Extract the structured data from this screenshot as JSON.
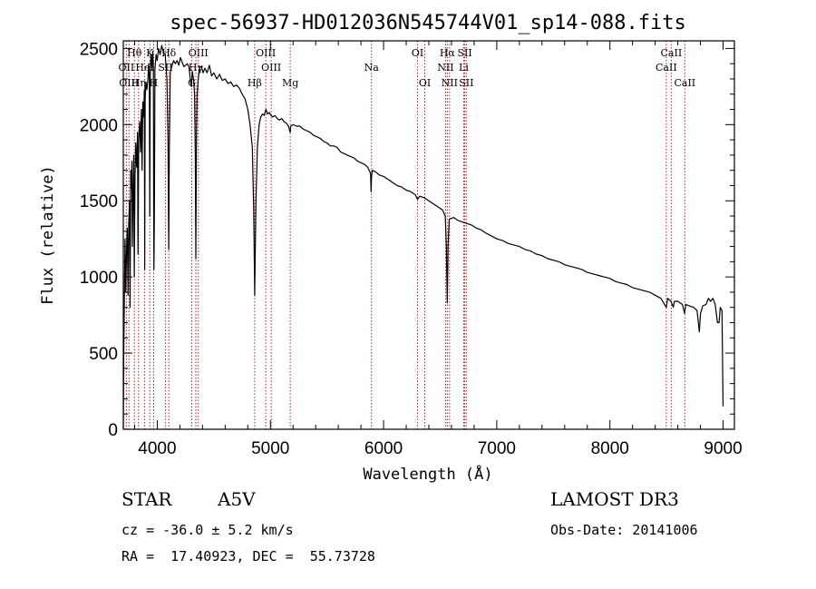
{
  "chart_data": {
    "type": "line",
    "title": "spec-56937-HD012036N545744V01_sp14-088.fits",
    "xlabel": "Wavelength (Å)",
    "ylabel": "Flux (relative)",
    "xlim": [
      3700,
      9100
    ],
    "ylim": [
      0,
      2550
    ],
    "xticks": [
      4000,
      5000,
      6000,
      7000,
      8000,
      9000
    ],
    "yticks": [
      0,
      500,
      1000,
      1500,
      2000,
      2500
    ],
    "series": [
      {
        "name": "spectrum",
        "points": [
          [
            3700,
            0
          ],
          [
            3703,
            420
          ],
          [
            3708,
            780
          ],
          [
            3715,
            1250
          ],
          [
            3722,
            900
          ],
          [
            3728,
            1150
          ],
          [
            3735,
            1320
          ],
          [
            3742,
            880
          ],
          [
            3748,
            1350
          ],
          [
            3755,
            1500
          ],
          [
            3760,
            800
          ],
          [
            3766,
            1700
          ],
          [
            3772,
            1580
          ],
          [
            3776,
            1760
          ],
          [
            3780,
            1200
          ],
          [
            3786,
            1520
          ],
          [
            3792,
            1800
          ],
          [
            3797,
            1000
          ],
          [
            3803,
            1650
          ],
          [
            3810,
            1880
          ],
          [
            3818,
            1720
          ],
          [
            3826,
            1950
          ],
          [
            3830,
            1150
          ],
          [
            3836,
            1900
          ],
          [
            3845,
            2020
          ],
          [
            3852,
            1820
          ],
          [
            3860,
            2100
          ],
          [
            3866,
            1700
          ],
          [
            3872,
            2150
          ],
          [
            3880,
            2050
          ],
          [
            3886,
            2230
          ],
          [
            3889,
            1050
          ],
          [
            3893,
            2170
          ],
          [
            3900,
            2280
          ],
          [
            3908,
            2230
          ],
          [
            3916,
            2290
          ],
          [
            3924,
            2400
          ],
          [
            3930,
            2300
          ],
          [
            3934,
            1400
          ],
          [
            3938,
            2320
          ],
          [
            3944,
            2460
          ],
          [
            3952,
            2380
          ],
          [
            3960,
            2480
          ],
          [
            3966,
            2350
          ],
          [
            3968,
            1450
          ],
          [
            3971,
            1050
          ],
          [
            3975,
            1450
          ],
          [
            3980,
            2370
          ],
          [
            3990,
            2460
          ],
          [
            4000,
            2420
          ],
          [
            4012,
            2500
          ],
          [
            4025,
            2460
          ],
          [
            4040,
            2520
          ],
          [
            4055,
            2470
          ],
          [
            4070,
            2460
          ],
          [
            4085,
            2300
          ],
          [
            4095,
            1900
          ],
          [
            4101,
            1180
          ],
          [
            4106,
            1800
          ],
          [
            4115,
            2340
          ],
          [
            4128,
            2380
          ],
          [
            4145,
            2420
          ],
          [
            4160,
            2400
          ],
          [
            4175,
            2420
          ],
          [
            4190,
            2390
          ],
          [
            4205,
            2440
          ],
          [
            4220,
            2410
          ],
          [
            4235,
            2380
          ],
          [
            4250,
            2390
          ],
          [
            4265,
            2400
          ],
          [
            4280,
            2380
          ],
          [
            4292,
            2300
          ],
          [
            4302,
            2250
          ],
          [
            4310,
            2350
          ],
          [
            4320,
            2300
          ],
          [
            4330,
            2200
          ],
          [
            4336,
            1800
          ],
          [
            4341,
            1120
          ],
          [
            4346,
            1850
          ],
          [
            4352,
            2200
          ],
          [
            4362,
            2300
          ],
          [
            4375,
            2380
          ],
          [
            4390,
            2380
          ],
          [
            4405,
            2340
          ],
          [
            4420,
            2370
          ],
          [
            4440,
            2340
          ],
          [
            4460,
            2390
          ],
          [
            4480,
            2320
          ],
          [
            4500,
            2340
          ],
          [
            4525,
            2300
          ],
          [
            4550,
            2330
          ],
          [
            4575,
            2290
          ],
          [
            4600,
            2300
          ],
          [
            4625,
            2270
          ],
          [
            4650,
            2280
          ],
          [
            4675,
            2250
          ],
          [
            4700,
            2260
          ],
          [
            4725,
            2240
          ],
          [
            4750,
            2200
          ],
          [
            4775,
            2170
          ],
          [
            4800,
            2100
          ],
          [
            4820,
            2000
          ],
          [
            4840,
            1850
          ],
          [
            4852,
            1450
          ],
          [
            4858,
            1100
          ],
          [
            4861,
            880
          ],
          [
            4865,
            1100
          ],
          [
            4872,
            1500
          ],
          [
            4885,
            1850
          ],
          [
            4900,
            2000
          ],
          [
            4915,
            2050
          ],
          [
            4930,
            2070
          ],
          [
            4945,
            2060
          ],
          [
            4960,
            2100
          ],
          [
            4975,
            2070
          ],
          [
            4990,
            2080
          ],
          [
            5005,
            2060
          ],
          [
            5020,
            2050
          ],
          [
            5040,
            2060
          ],
          [
            5060,
            2040
          ],
          [
            5080,
            2030
          ],
          [
            5100,
            2040
          ],
          [
            5120,
            2020
          ],
          [
            5140,
            2010
          ],
          [
            5160,
            1990
          ],
          [
            5170,
            1960
          ],
          [
            5175,
            1950
          ],
          [
            5180,
            1990
          ],
          [
            5200,
            2000
          ],
          [
            5230,
            1990
          ],
          [
            5260,
            1990
          ],
          [
            5290,
            1970
          ],
          [
            5320,
            1960
          ],
          [
            5350,
            1950
          ],
          [
            5380,
            1930
          ],
          [
            5410,
            1920
          ],
          [
            5440,
            1910
          ],
          [
            5470,
            1890
          ],
          [
            5500,
            1880
          ],
          [
            5530,
            1860
          ],
          [
            5560,
            1860
          ],
          [
            5590,
            1850
          ],
          [
            5620,
            1820
          ],
          [
            5650,
            1810
          ],
          [
            5680,
            1800
          ],
          [
            5710,
            1790
          ],
          [
            5740,
            1780
          ],
          [
            5770,
            1760
          ],
          [
            5800,
            1750
          ],
          [
            5830,
            1740
          ],
          [
            5860,
            1720
          ],
          [
            5885,
            1680
          ],
          [
            5890,
            1560
          ],
          [
            5894,
            1660
          ],
          [
            5900,
            1700
          ],
          [
            5930,
            1690
          ],
          [
            5960,
            1670
          ],
          [
            6000,
            1660
          ],
          [
            6040,
            1640
          ],
          [
            6080,
            1620
          ],
          [
            6120,
            1600
          ],
          [
            6160,
            1590
          ],
          [
            6200,
            1570
          ],
          [
            6240,
            1560
          ],
          [
            6280,
            1540
          ],
          [
            6300,
            1510
          ],
          [
            6320,
            1530
          ],
          [
            6360,
            1520
          ],
          [
            6400,
            1500
          ],
          [
            6440,
            1480
          ],
          [
            6480,
            1460
          ],
          [
            6520,
            1440
          ],
          [
            6545,
            1400
          ],
          [
            6555,
            1200
          ],
          [
            6563,
            830
          ],
          [
            6570,
            1200
          ],
          [
            6580,
            1380
          ],
          [
            6620,
            1390
          ],
          [
            6660,
            1370
          ],
          [
            6700,
            1360
          ],
          [
            6740,
            1350
          ],
          [
            6780,
            1340
          ],
          [
            6820,
            1320
          ],
          [
            6860,
            1310
          ],
          [
            6900,
            1290
          ],
          [
            6950,
            1270
          ],
          [
            7000,
            1250
          ],
          [
            7050,
            1240
          ],
          [
            7100,
            1220
          ],
          [
            7150,
            1210
          ],
          [
            7200,
            1200
          ],
          [
            7250,
            1180
          ],
          [
            7300,
            1170
          ],
          [
            7350,
            1150
          ],
          [
            7400,
            1140
          ],
          [
            7450,
            1120
          ],
          [
            7500,
            1110
          ],
          [
            7550,
            1100
          ],
          [
            7600,
            1080
          ],
          [
            7650,
            1070
          ],
          [
            7700,
            1060
          ],
          [
            7750,
            1050
          ],
          [
            7800,
            1030
          ],
          [
            7850,
            1020
          ],
          [
            7900,
            1010
          ],
          [
            7950,
            1000
          ],
          [
            8000,
            990
          ],
          [
            8050,
            970
          ],
          [
            8100,
            960
          ],
          [
            8150,
            950
          ],
          [
            8200,
            930
          ],
          [
            8250,
            920
          ],
          [
            8300,
            910
          ],
          [
            8350,
            900
          ],
          [
            8400,
            880
          ],
          [
            8450,
            860
          ],
          [
            8498,
            800
          ],
          [
            8510,
            860
          ],
          [
            8540,
            840
          ],
          [
            8560,
            800
          ],
          [
            8570,
            840
          ],
          [
            8600,
            840
          ],
          [
            8640,
            820
          ],
          [
            8660,
            760
          ],
          [
            8670,
            820
          ],
          [
            8700,
            810
          ],
          [
            8740,
            800
          ],
          [
            8770,
            780
          ],
          [
            8790,
            640
          ],
          [
            8800,
            760
          ],
          [
            8820,
            810
          ],
          [
            8850,
            820
          ],
          [
            8870,
            860
          ],
          [
            8890,
            840
          ],
          [
            8910,
            860
          ],
          [
            8930,
            820
          ],
          [
            8950,
            700
          ],
          [
            8965,
            700
          ],
          [
            8975,
            800
          ],
          [
            8990,
            780
          ],
          [
            9000,
            150
          ]
        ]
      }
    ],
    "line_marks": [
      {
        "label": "Hθ",
        "x": 3798,
        "row": 1
      },
      {
        "label": "OII",
        "x": 3727,
        "row": 2
      },
      {
        "label": "OIII",
        "x": 3750,
        "row": 3
      },
      {
        "label": "Hη",
        "x": 3835,
        "row": 3
      },
      {
        "label": "K",
        "x": 3934,
        "row": 1
      },
      {
        "label": "HeI",
        "x": 3889,
        "row": 2
      },
      {
        "label": "H",
        "x": 3968,
        "row": 3
      },
      {
        "label": "SII",
        "x": 4072,
        "row": 2
      },
      {
        "label": "Hδ",
        "x": 4102,
        "row": 1
      },
      {
        "label": "OIII",
        "x": 4363,
        "row": 1
      },
      {
        "label": "Hγ",
        "x": 4341,
        "row": 2
      },
      {
        "label": "G",
        "x": 4305,
        "row": 3
      },
      {
        "label": "OIII",
        "x": 4959,
        "row": 1
      },
      {
        "label": "OIII",
        "x": 5007,
        "row": 2
      },
      {
        "label": "Hβ",
        "x": 4861,
        "row": 3
      },
      {
        "label": "Mg",
        "x": 5175,
        "row": 3
      },
      {
        "label": "Na",
        "x": 5893,
        "row": 2
      },
      {
        "label": "OI",
        "x": 6300,
        "row": 1
      },
      {
        "label": "OI",
        "x": 6364,
        "row": 3
      },
      {
        "label": "Hα",
        "x": 6563,
        "row": 1
      },
      {
        "label": "NII",
        "x": 6548,
        "row": 2
      },
      {
        "label": "NII",
        "x": 6583,
        "row": 3
      },
      {
        "label": "SII",
        "x": 6717,
        "row": 1
      },
      {
        "label": "Li",
        "x": 6708,
        "row": 2
      },
      {
        "label": "SII",
        "x": 6731,
        "row": 3
      },
      {
        "label": "CaII",
        "x": 8542,
        "row": 1
      },
      {
        "label": "CaII",
        "x": 8498,
        "row": 2
      },
      {
        "label": "CaII",
        "x": 8662,
        "row": 3
      }
    ]
  },
  "info": {
    "object_type": "STAR",
    "subclass": "A5V",
    "survey": "LAMOST DR3",
    "cz": "cz = -36.0 ± 5.2 km/s",
    "obs_date": "Obs-Date: 20141006",
    "coords": "RA =  17.40923, DEC =  55.73728"
  },
  "colors": {
    "line_marker": "#b22222",
    "spectrum": "#000000"
  }
}
